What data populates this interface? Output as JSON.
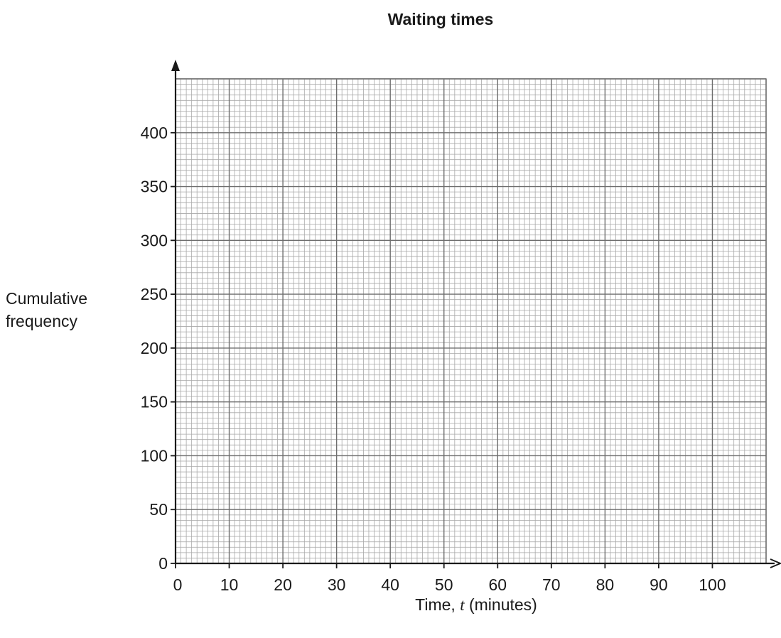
{
  "chart_data": {
    "type": "line",
    "title": "Waiting times",
    "xlabel": {
      "prefix": "Time, ",
      "variable": "t",
      "suffix": " (minutes)"
    },
    "ylabel": [
      "Cumulative",
      "frequency"
    ],
    "xlim": [
      0,
      110
    ],
    "ylim": [
      0,
      450
    ],
    "x_ticks": [
      0,
      10,
      20,
      30,
      40,
      50,
      60,
      70,
      80,
      90,
      100
    ],
    "y_ticks": [
      0,
      50,
      100,
      150,
      200,
      250,
      300,
      350,
      400
    ],
    "grid": {
      "major_x_step": 10,
      "minor_x_step": 1,
      "major_y_step": 50,
      "minor_y_step": 5
    },
    "series": []
  }
}
